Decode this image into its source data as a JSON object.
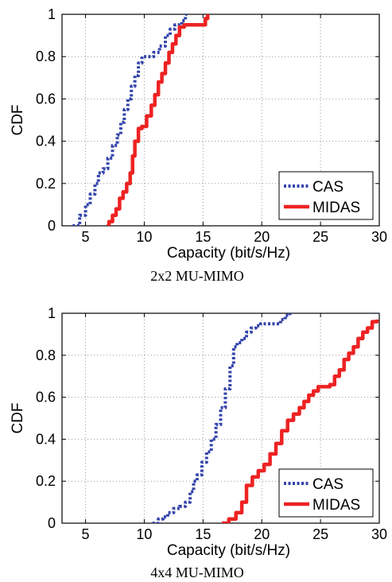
{
  "chart_data": [
    {
      "type": "line",
      "caption": "2x2 MU-MIMO",
      "xlabel": "Capacity (bit/s/Hz)",
      "ylabel": "CDF",
      "xlim": [
        3,
        30
      ],
      "ylim": [
        0,
        1
      ],
      "xticks": [
        5,
        10,
        15,
        20,
        25,
        30
      ],
      "yticks": [
        0,
        0.2,
        0.4,
        0.6,
        0.8,
        1
      ],
      "grid": true,
      "legend_position": "bottom-right",
      "series": [
        {
          "name": "CAS",
          "color": "#3344aa",
          "style": "dotted",
          "x": [
            3.9,
            4.5,
            5.0,
            5.4,
            5.8,
            6.1,
            6.5,
            6.9,
            7.3,
            7.7,
            8.0,
            8.3,
            8.6,
            8.9,
            9.2,
            9.5,
            9.8,
            10.2,
            10.8,
            11.3,
            11.8,
            12.2,
            12.6,
            12.9,
            13.2,
            13.5,
            13.8
          ],
          "y": [
            0.0,
            0.05,
            0.1,
            0.15,
            0.2,
            0.25,
            0.27,
            0.32,
            0.38,
            0.43,
            0.49,
            0.55,
            0.6,
            0.66,
            0.71,
            0.77,
            0.8,
            0.8,
            0.82,
            0.85,
            0.9,
            0.93,
            0.95,
            0.95,
            0.97,
            1.0,
            1.0
          ]
        },
        {
          "name": "MIDAS",
          "color": "#ee2222",
          "style": "solid",
          "x": [
            6.8,
            7.0,
            7.3,
            7.6,
            7.9,
            8.2,
            8.5,
            8.8,
            9.0,
            9.2,
            9.5,
            9.8,
            10.2,
            10.6,
            10.9,
            11.2,
            11.5,
            11.8,
            12.1,
            12.4,
            12.7,
            13.0,
            13.4,
            14.0,
            14.5,
            15.0,
            15.2,
            15.4
          ],
          "y": [
            0.0,
            0.02,
            0.05,
            0.08,
            0.13,
            0.16,
            0.2,
            0.25,
            0.33,
            0.4,
            0.46,
            0.47,
            0.52,
            0.57,
            0.62,
            0.68,
            0.72,
            0.77,
            0.82,
            0.86,
            0.9,
            0.94,
            0.95,
            0.95,
            0.95,
            0.95,
            0.98,
            1.0
          ]
        }
      ]
    },
    {
      "type": "line",
      "caption": "4x4 MU-MIMO",
      "xlabel": "Capacity (bit/s/Hz)",
      "ylabel": "CDF",
      "xlim": [
        3,
        30
      ],
      "ylim": [
        0,
        1
      ],
      "xticks": [
        5,
        10,
        15,
        20,
        25,
        30
      ],
      "yticks": [
        0,
        0.2,
        0.4,
        0.6,
        0.8,
        1
      ],
      "grid": true,
      "legend_position": "bottom-right",
      "series": [
        {
          "name": "CAS",
          "color": "#3344aa",
          "style": "dotted",
          "x": [
            10.7,
            11.2,
            11.6,
            12.0,
            12.5,
            13.0,
            13.5,
            13.9,
            14.2,
            14.5,
            14.9,
            15.3,
            15.7,
            16.1,
            16.5,
            16.9,
            17.3,
            17.6,
            17.9,
            18.3,
            18.7,
            19.1,
            19.5,
            19.9,
            20.3,
            21.0,
            21.6,
            22.0,
            22.4
          ],
          "y": [
            0.0,
            0.02,
            0.03,
            0.05,
            0.07,
            0.08,
            0.1,
            0.15,
            0.2,
            0.23,
            0.29,
            0.34,
            0.4,
            0.47,
            0.55,
            0.64,
            0.75,
            0.84,
            0.86,
            0.88,
            0.91,
            0.93,
            0.94,
            0.95,
            0.95,
            0.95,
            0.97,
            0.99,
            1.0
          ]
        },
        {
          "name": "MIDAS",
          "color": "#ee2222",
          "style": "solid",
          "x": [
            16.6,
            17.2,
            17.8,
            18.3,
            18.7,
            19.2,
            19.7,
            20.2,
            20.7,
            21.2,
            21.7,
            22.2,
            22.7,
            23.2,
            23.6,
            24.0,
            24.4,
            24.8,
            25.2,
            25.5,
            25.8,
            26.2,
            26.6,
            27.0,
            27.4,
            27.8,
            28.2,
            28.6,
            29.0,
            29.4,
            29.8
          ],
          "y": [
            0.0,
            0.02,
            0.05,
            0.1,
            0.18,
            0.22,
            0.25,
            0.28,
            0.33,
            0.38,
            0.44,
            0.49,
            0.52,
            0.55,
            0.58,
            0.61,
            0.63,
            0.65,
            0.65,
            0.65,
            0.66,
            0.7,
            0.73,
            0.78,
            0.81,
            0.84,
            0.88,
            0.91,
            0.93,
            0.96,
            0.97
          ]
        }
      ]
    }
  ]
}
